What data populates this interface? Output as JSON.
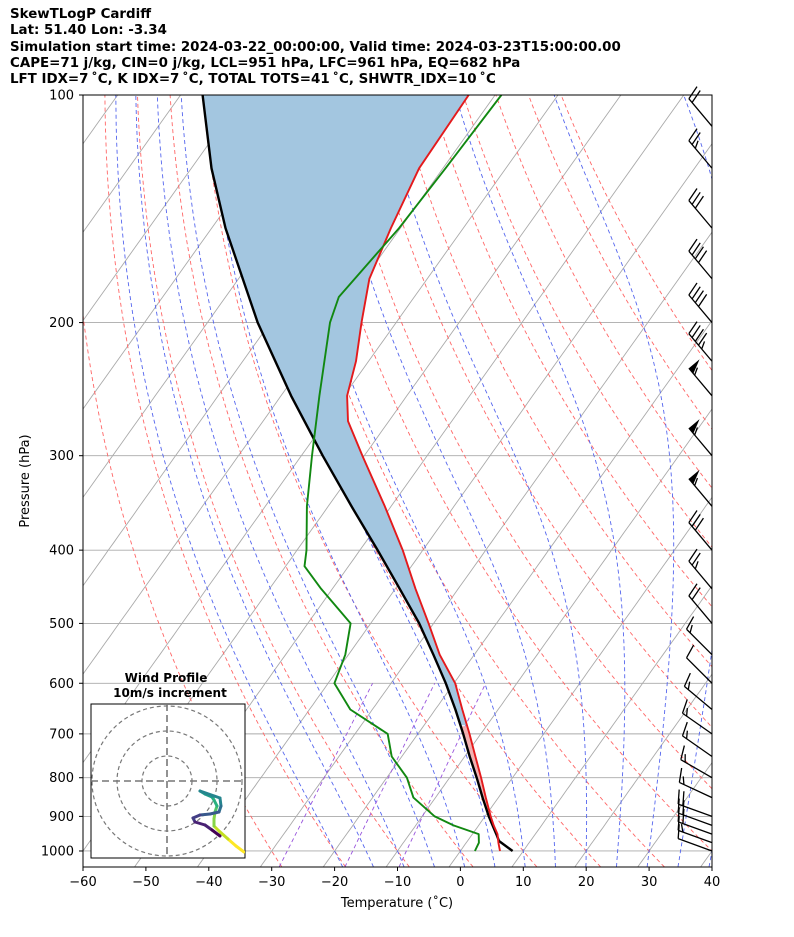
{
  "header": {
    "line1": "SkewTLogP Cardiff",
    "line2": "Lat: 51.40   Lon: -3.34",
    "line3": "Simulation start time: 2024-03-22_00:00:00, Valid time: 2024-03-23T15:00:00.00",
    "line4": "CAPE=71 j/kg, CIN=0 j/kg, LCL=951 hPa, LFC=961 hPa, EQ=682 hPa",
    "line5": "LFT IDX=7 ˚C, K IDX=7 ˚C, TOTAL TOTS=41 ˚C, SHWTR_IDX=10 ˚C"
  },
  "chart_data": {
    "type": "skew-t",
    "xlabel": "Temperature (˚C)",
    "ylabel": "Pressure (hPa)",
    "xlim": [
      -60,
      40
    ],
    "ylim_hpa": [
      1050,
      100
    ],
    "log_y": true,
    "x_ticks": [
      -60,
      -50,
      -40,
      -30,
      -20,
      -10,
      0,
      10,
      20,
      30,
      40
    ],
    "y_ticks": [
      100,
      200,
      300,
      400,
      500,
      600,
      700,
      800,
      900,
      1000
    ],
    "grid": true,
    "colors": {
      "temperature": "#e41a1c",
      "dewpoint": "#118811",
      "parcel": "#000000",
      "cape_fill": "#a3c6e0",
      "dry_adiabat": "#ff6666",
      "moist_adiabat": "#5566ee",
      "mixing_ratio": "#9955dd",
      "isotherm": "#aaaaaa"
    },
    "temperature_profile": {
      "name": "",
      "pressure": [
        1000,
        975,
        950,
        925,
        900,
        850,
        800,
        750,
        700,
        650,
        600,
        550,
        500,
        450,
        400,
        350,
        300,
        270,
        250,
        225,
        200,
        175,
        150,
        125,
        100
      ],
      "temp": [
        6.3,
        5.1,
        4.0,
        2.4,
        0.9,
        -2.0,
        -5.0,
        -8.3,
        -11.8,
        -15.7,
        -19.8,
        -25.5,
        -30.8,
        -36.8,
        -43.2,
        -51.0,
        -60.3,
        -66.5,
        -69.5,
        -72.0,
        -75.5,
        -79.2,
        -81.5,
        -83.8,
        -84.2
      ]
    },
    "dewpoint_profile": {
      "name": "",
      "pressure": [
        1000,
        975,
        950,
        925,
        900,
        850,
        800,
        750,
        700,
        650,
        600,
        550,
        500,
        450,
        420,
        400,
        350,
        300,
        250,
        200,
        185,
        150,
        125,
        100
      ],
      "dewpoint": [
        2.3,
        2.0,
        1.0,
        -4.0,
        -8.0,
        -13.5,
        -16.8,
        -21.6,
        -24.8,
        -33.5,
        -39.0,
        -40.5,
        -43.2,
        -51.8,
        -57.0,
        -58.5,
        -63.4,
        -68.3,
        -73.9,
        -80.5,
        -82.0,
        -80.2,
        -79.6,
        -79.0
      ]
    },
    "parcel_profile": {
      "name": "",
      "pressure": [
        1000,
        970,
        950,
        900,
        850,
        800,
        750,
        700,
        650,
        600,
        550,
        500,
        450,
        400,
        350,
        300,
        250,
        200,
        150,
        125,
        100
      ],
      "temp": [
        8.3,
        5.0,
        3.8,
        0.6,
        -2.5,
        -5.7,
        -9.2,
        -12.8,
        -16.8,
        -21.3,
        -26.5,
        -32.3,
        -39.3,
        -47.2,
        -56.3,
        -66.6,
        -78.4,
        -92.0,
        -107.8,
        -116.8,
        -126.5
      ]
    },
    "cape_region": "parcel warmer than environment between 682 hPa and 100 hPa",
    "wind_barbs": {
      "pressure": [
        1000,
        975,
        950,
        925,
        900,
        850,
        800,
        750,
        700,
        650,
        600,
        550,
        500,
        450,
        400,
        350,
        300,
        250,
        225,
        200,
        175,
        150,
        125,
        110
      ],
      "speed_kt": [
        10,
        15,
        20,
        20,
        20,
        15,
        15,
        15,
        15,
        15,
        10,
        15,
        20,
        25,
        30,
        55,
        55,
        55,
        45,
        40,
        40,
        30,
        25,
        20
      ],
      "direction_deg": [
        290,
        290,
        290,
        290,
        290,
        295,
        300,
        305,
        305,
        310,
        315,
        315,
        320,
        320,
        320,
        320,
        320,
        320,
        320,
        320,
        320,
        320,
        320,
        320
      ]
    },
    "inset": {
      "title": "Wind Profile",
      "subtitle": "10m/s increment",
      "rings": [
        10,
        20,
        30
      ],
      "hodograph_colormap": "viridis",
      "hodograph_note": "hodograph trace in lower-right quadrant"
    }
  }
}
